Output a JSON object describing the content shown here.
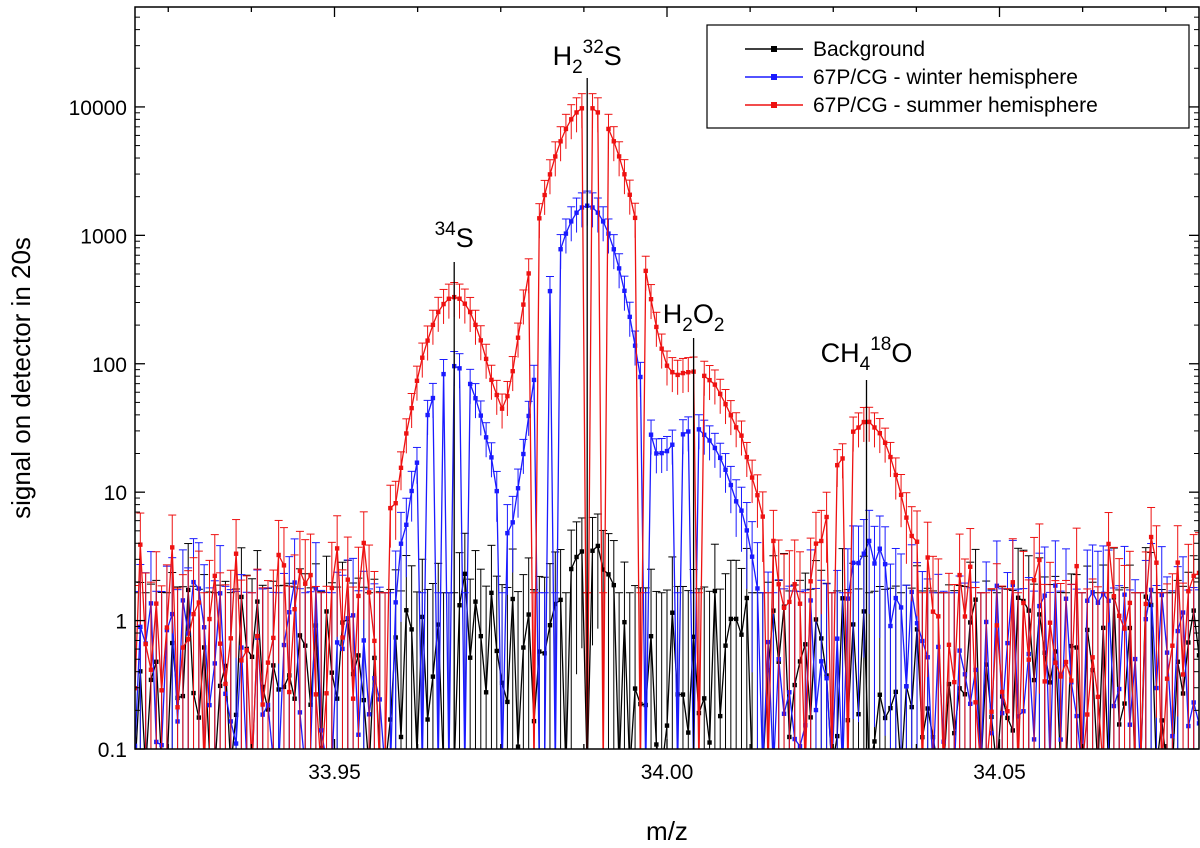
{
  "chart_data": {
    "type": "line",
    "xlabel": "m/z",
    "ylabel": "signal on detector in 20s",
    "xlim": [
      33.92,
      34.08
    ],
    "ylim": [
      0.1,
      60000
    ],
    "y_scale": "log",
    "x_ticks": [
      "33.95",
      "34.00",
      "34.05"
    ],
    "y_ticks": [
      "0.1",
      "1",
      "10",
      "100",
      "1000",
      "10000"
    ],
    "legend_position": "top-right",
    "grid": false,
    "error_bars": true,
    "annotations": [
      {
        "id": "s34",
        "base": "",
        "sup": "34",
        "rest": "S",
        "x": 33.968
      },
      {
        "id": "h2s",
        "base": "H",
        "sub": "2",
        "sup": "32",
        "rest": "S",
        "x": 33.988
      },
      {
        "id": "h2o2",
        "base": "H",
        "sub": "2",
        "rest": "O",
        "sub2": "2",
        "x": 34.004
      },
      {
        "id": "ch4o",
        "base": "CH",
        "sub": "4",
        "sup": "18",
        "rest": "O",
        "x": 34.03
      }
    ],
    "series": [
      {
        "name": "Background",
        "color": "#000000",
        "peaks": [
          {
            "center": 33.988,
            "amplitude": 3.5,
            "width": 0.0028
          },
          {
            "center": 33.968,
            "amplitude": 1.1,
            "width": 0.0015
          }
        ],
        "baseline": 0.35,
        "noise": 0.9,
        "rel_err": 0.6
      },
      {
        "name": "67P/CG - winter hemisphere",
        "color": "#1a1aff",
        "peaks": [
          {
            "center": 33.988,
            "amplitude": 1700,
            "width": 0.0032
          },
          {
            "center": 33.968,
            "amplitude": 95,
            "width": 0.003
          },
          {
            "center": 34.004,
            "amplitude": 30,
            "width": 0.004
          },
          {
            "center": 34.03,
            "amplitude": 3.2,
            "width": 0.002
          }
        ],
        "baseline": 0.4,
        "noise": 0.9,
        "rel_err": 0.3
      },
      {
        "name": "67P/CG - summer hemisphere",
        "color": "#ee1111",
        "peaks": [
          {
            "center": 33.988,
            "amplitude": 10000,
            "width": 0.0036
          },
          {
            "center": 33.968,
            "amplitude": 330,
            "width": 0.0032
          },
          {
            "center": 34.004,
            "amplitude": 85,
            "width": 0.0045
          },
          {
            "center": 34.03,
            "amplitude": 34,
            "width": 0.0032
          }
        ],
        "baseline": 0.9,
        "noise": 0.9,
        "rel_err": 0.3
      }
    ]
  }
}
